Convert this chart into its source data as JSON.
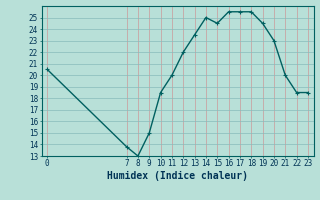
{
  "x": [
    0,
    7,
    8,
    9,
    10,
    11,
    12,
    13,
    14,
    15,
    16,
    17,
    18,
    19,
    20,
    21,
    22,
    23
  ],
  "y": [
    20.5,
    13.8,
    13.0,
    15.0,
    18.5,
    20.0,
    22.0,
    23.5,
    25.0,
    24.5,
    25.5,
    25.5,
    25.5,
    24.5,
    23.0,
    20.0,
    18.5,
    18.5
  ],
  "line_color": "#006060",
  "marker": "+",
  "bg_color": "#b8e0d8",
  "grid_color_y": "#88bbbb",
  "grid_color_x": "#cc9999",
  "xlabel": "Humidex (Indice chaleur)",
  "ylim": [
    13,
    26
  ],
  "yticks": [
    13,
    14,
    15,
    16,
    17,
    18,
    19,
    20,
    21,
    22,
    23,
    24,
    25
  ],
  "xticks": [
    0,
    7,
    8,
    9,
    10,
    11,
    12,
    13,
    14,
    15,
    16,
    17,
    18,
    19,
    20,
    21,
    22,
    23
  ],
  "font_color": "#003355",
  "tick_labelsize": 5.5,
  "xlabel_fontsize": 7,
  "line_width": 1.0,
  "marker_size": 3
}
